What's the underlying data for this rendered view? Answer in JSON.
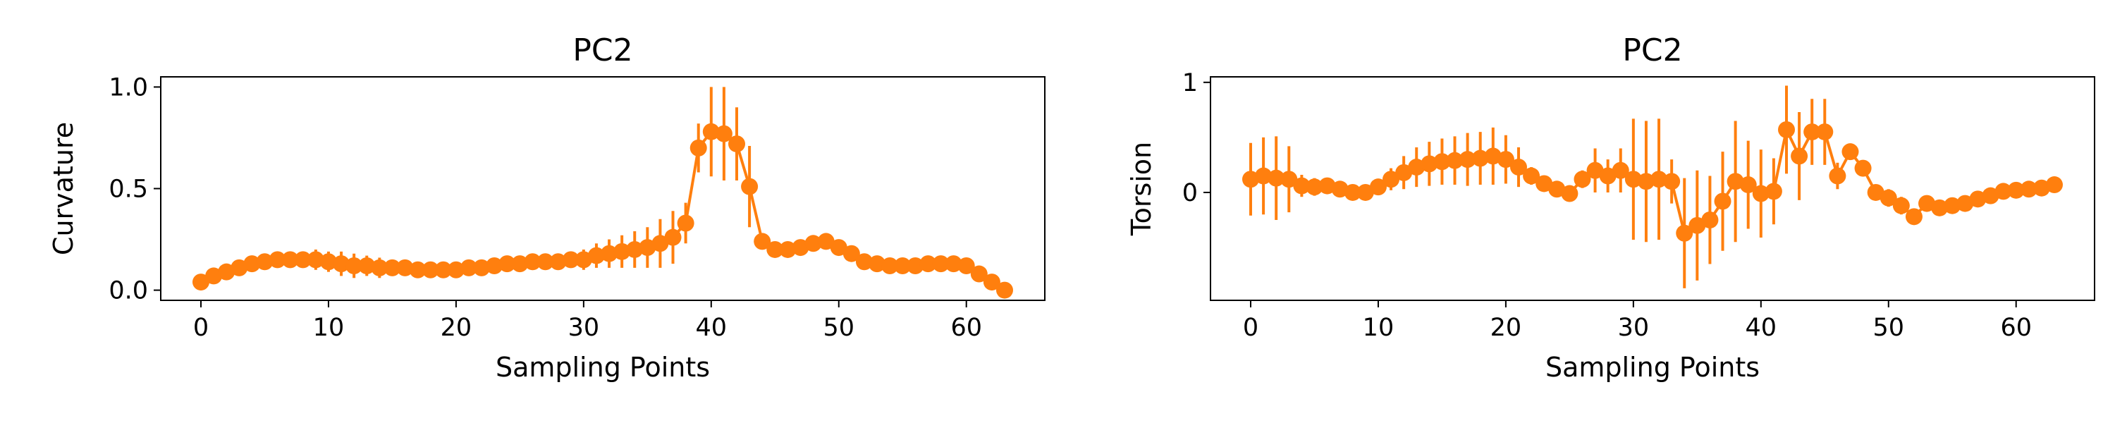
{
  "chart_data": [
    {
      "type": "line",
      "title": "PC2",
      "xlabel": "Sampling Points",
      "ylabel": "Curvature",
      "xlim": [
        -3.15,
        66.15
      ],
      "ylim": [
        -0.05,
        1.05
      ],
      "xticks": [
        0,
        10,
        20,
        30,
        40,
        50,
        60
      ],
      "xtick_labels": [
        "0",
        "10",
        "20",
        "30",
        "40",
        "50",
        "60"
      ],
      "yticks": [
        0.0,
        0.5,
        1.0
      ],
      "ytick_labels": [
        "0.0",
        "0.5",
        "1.0"
      ],
      "grid": false,
      "series": [
        {
          "color": "#ff7f0e",
          "marker": "circle",
          "error_bars": true,
          "x": [
            0,
            1,
            2,
            3,
            4,
            5,
            6,
            7,
            8,
            9,
            10,
            11,
            12,
            13,
            14,
            15,
            16,
            17,
            18,
            19,
            20,
            21,
            22,
            23,
            24,
            25,
            26,
            27,
            28,
            29,
            30,
            31,
            32,
            33,
            34,
            35,
            36,
            37,
            38,
            39,
            40,
            41,
            42,
            43,
            44,
            45,
            46,
            47,
            48,
            49,
            50,
            51,
            52,
            53,
            54,
            55,
            56,
            57,
            58,
            59,
            60,
            61,
            62,
            63
          ],
          "y": [
            0.04,
            0.07,
            0.09,
            0.11,
            0.13,
            0.14,
            0.15,
            0.15,
            0.15,
            0.15,
            0.14,
            0.13,
            0.12,
            0.12,
            0.11,
            0.11,
            0.11,
            0.1,
            0.1,
            0.1,
            0.1,
            0.11,
            0.11,
            0.12,
            0.13,
            0.13,
            0.14,
            0.14,
            0.14,
            0.15,
            0.15,
            0.17,
            0.18,
            0.19,
            0.2,
            0.21,
            0.23,
            0.26,
            0.33,
            0.7,
            0.78,
            0.77,
            0.72,
            0.51,
            0.24,
            0.2,
            0.2,
            0.21,
            0.23,
            0.24,
            0.21,
            0.18,
            0.14,
            0.13,
            0.12,
            0.12,
            0.12,
            0.13,
            0.13,
            0.13,
            0.12,
            0.08,
            0.04,
            0.0
          ],
          "err": [
            0.02,
            0.02,
            0.02,
            0.02,
            0.02,
            0.03,
            0.03,
            0.03,
            0.04,
            0.05,
            0.05,
            0.06,
            0.06,
            0.05,
            0.05,
            0.04,
            0.03,
            0.03,
            0.02,
            0.02,
            0.02,
            0.02,
            0.02,
            0.03,
            0.03,
            0.03,
            0.03,
            0.03,
            0.04,
            0.04,
            0.05,
            0.06,
            0.07,
            0.08,
            0.09,
            0.1,
            0.12,
            0.13,
            0.1,
            0.12,
            0.22,
            0.23,
            0.18,
            0.2,
            0.04,
            0.03,
            0.03,
            0.03,
            0.04,
            0.04,
            0.03,
            0.03,
            0.03,
            0.02,
            0.02,
            0.02,
            0.02,
            0.02,
            0.02,
            0.02,
            0.03,
            0.03,
            0.02,
            0.02
          ]
        }
      ]
    },
    {
      "type": "line",
      "title": "PC2",
      "xlabel": "Sampling Points",
      "ylabel": "Torsion",
      "xlim": [
        -3.15,
        66.15
      ],
      "ylim": [
        -0.98,
        1.05
      ],
      "xticks": [
        0,
        10,
        20,
        30,
        40,
        50,
        60
      ],
      "xtick_labels": [
        "0",
        "10",
        "20",
        "30",
        "40",
        "50",
        "60"
      ],
      "yticks": [
        0,
        1
      ],
      "ytick_labels": [
        "0",
        "1"
      ],
      "grid": false,
      "series": [
        {
          "color": "#ff7f0e",
          "marker": "circle",
          "error_bars": true,
          "x": [
            0,
            1,
            2,
            3,
            4,
            5,
            6,
            7,
            8,
            9,
            10,
            11,
            12,
            13,
            14,
            15,
            16,
            17,
            18,
            19,
            20,
            21,
            22,
            23,
            24,
            25,
            26,
            27,
            28,
            29,
            30,
            31,
            32,
            33,
            34,
            35,
            36,
            37,
            38,
            39,
            40,
            41,
            42,
            43,
            44,
            45,
            46,
            47,
            48,
            49,
            50,
            51,
            52,
            53,
            54,
            55,
            56,
            57,
            58,
            59,
            60,
            61,
            62,
            63
          ],
          "y": [
            0.12,
            0.15,
            0.13,
            0.12,
            0.06,
            0.05,
            0.06,
            0.03,
            0.0,
            0.0,
            0.05,
            0.12,
            0.18,
            0.23,
            0.26,
            0.28,
            0.29,
            0.3,
            0.31,
            0.33,
            0.3,
            0.23,
            0.15,
            0.08,
            0.03,
            -0.01,
            0.12,
            0.2,
            0.15,
            0.2,
            0.12,
            0.1,
            0.12,
            0.1,
            -0.37,
            -0.3,
            -0.25,
            -0.08,
            0.1,
            0.07,
            -0.01,
            0.01,
            0.57,
            0.33,
            0.55,
            0.55,
            0.15,
            0.37,
            0.22,
            0.0,
            -0.05,
            -0.12,
            -0.22,
            -0.1,
            -0.14,
            -0.12,
            -0.1,
            -0.06,
            -0.03,
            0.01,
            0.02,
            0.03,
            0.04,
            0.07
          ],
          "err": [
            0.33,
            0.35,
            0.38,
            0.3,
            0.1,
            0.08,
            0.06,
            0.05,
            0.04,
            0.04,
            0.06,
            0.1,
            0.15,
            0.18,
            0.2,
            0.21,
            0.22,
            0.24,
            0.24,
            0.26,
            0.22,
            0.18,
            0.08,
            0.05,
            0.05,
            0.05,
            0.08,
            0.2,
            0.15,
            0.2,
            0.55,
            0.55,
            0.55,
            0.2,
            0.5,
            0.5,
            0.4,
            0.45,
            0.55,
            0.4,
            0.4,
            0.3,
            0.4,
            0.4,
            0.3,
            0.3,
            0.12,
            0.05,
            0.05,
            0.05,
            0.08,
            0.08,
            0.05,
            0.05,
            0.03,
            0.03,
            0.02,
            0.02,
            0.02,
            0.02,
            0.02,
            0.02,
            0.02,
            0.02
          ]
        }
      ]
    }
  ]
}
